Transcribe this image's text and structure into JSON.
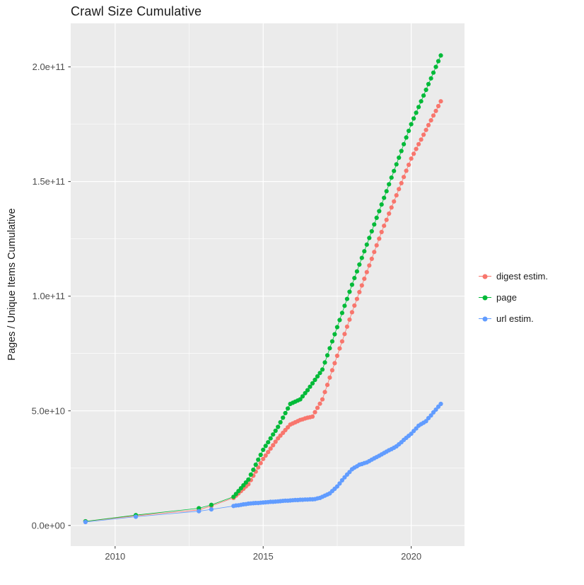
{
  "chart_data": {
    "type": "scatter",
    "has_lines": true,
    "title": "Crawl Size Cumulative",
    "xlabel": "",
    "ylabel": "Pages / Unique Items Cumulative",
    "x_domain": [
      2008.5,
      2021.8
    ],
    "y_domain": [
      -9000000000.0,
      219000000000.0
    ],
    "x_ticks": [
      {
        "value": 2010,
        "label": "2010"
      },
      {
        "value": 2015,
        "label": "2015"
      },
      {
        "value": 2020,
        "label": "2020"
      }
    ],
    "x_minor_ticks": [
      2012.5,
      2017.5
    ],
    "y_ticks": [
      {
        "value": 0,
        "label": "0.0e+00"
      },
      {
        "value": 50000000000.0,
        "label": "5.0e+10"
      },
      {
        "value": 100000000000.0,
        "label": "1.0e+11"
      },
      {
        "value": 150000000000.0,
        "label": "1.5e+11"
      },
      {
        "value": 200000000000.0,
        "label": "2.0e+11"
      }
    ],
    "y_minor_ticks": [
      25000000000.0,
      75000000000.0,
      125000000000.0,
      175000000000.0
    ],
    "panel_bg": "#EBEBEB",
    "grid_color": "#FFFFFF",
    "tick_color": "#333333",
    "tick_label_color": "#4D4D4D",
    "grid": true,
    "legend_position": "right",
    "legend": [
      {
        "label": "digest estim.",
        "color": "#F8766D"
      },
      {
        "label": "page",
        "color": "#00BA38"
      },
      {
        "label": "url estim.",
        "color": "#619CFF"
      }
    ],
    "x": [
      2009.0,
      2010.7,
      2012.83,
      2013.25,
      2014.0,
      2014.083,
      2014.167,
      2014.25,
      2014.333,
      2014.417,
      2014.5,
      2014.583,
      2014.667,
      2014.75,
      2014.833,
      2014.917,
      2015.0,
      2015.083,
      2015.167,
      2015.25,
      2015.333,
      2015.417,
      2015.5,
      2015.583,
      2015.667,
      2015.75,
      2015.833,
      2015.917,
      2016.0,
      2016.083,
      2016.167,
      2016.25,
      2016.333,
      2016.417,
      2016.5,
      2016.583,
      2016.667,
      2016.75,
      2016.833,
      2016.917,
      2017.0,
      2017.083,
      2017.167,
      2017.25,
      2017.333,
      2017.417,
      2017.5,
      2017.583,
      2017.667,
      2017.75,
      2017.833,
      2017.917,
      2018.0,
      2018.083,
      2018.167,
      2018.25,
      2018.333,
      2018.417,
      2018.5,
      2018.583,
      2018.667,
      2018.75,
      2018.833,
      2018.917,
      2019.0,
      2019.083,
      2019.167,
      2019.25,
      2019.333,
      2019.417,
      2019.5,
      2019.583,
      2019.667,
      2019.75,
      2019.833,
      2019.917,
      2020.0,
      2020.083,
      2020.167,
      2020.25,
      2020.333,
      2020.417,
      2020.5,
      2020.583,
      2020.667,
      2020.75,
      2020.833,
      2020.917,
      2021.0
    ],
    "series": [
      {
        "id": "digest",
        "name": "digest estim.",
        "color": "#F8766D",
        "y": [
          1800000000.0,
          4200000000.0,
          6800000000.0,
          8500000000.0,
          12000000000.0,
          13000000000.0,
          14000000000.0,
          15000000000.0,
          16000000000.0,
          17000000000.0,
          18000000000.0,
          19800000000.0,
          21700000000.0,
          23500000000.0,
          25300000000.0,
          27200000000.0,
          29000000000.0,
          30500000000.0,
          32000000000.0,
          33500000000.0,
          35000000000.0,
          36500000000.0,
          38000000000.0,
          39200000000.0,
          40400000000.0,
          41600000000.0,
          42800000000.0,
          44000000000.0,
          44500000000.0,
          45000000000.0,
          45500000000.0,
          46000000000.0,
          46300000000.0,
          46700000000.0,
          47000000000.0,
          47200000000.0,
          47500000000.0,
          49400000000.0,
          51300000000.0,
          53100000000.0,
          55000000000.0,
          58200000000.0,
          61300000000.0,
          64500000000.0,
          67700000000.0,
          70800000000.0,
          74000000000.0,
          77200000000.0,
          80300000000.0,
          83500000000.0,
          86700000000.0,
          89800000000.0,
          93000000000.0,
          95900000000.0,
          98800000000.0,
          101800000000.0,
          104700000000.0,
          107600000000.0,
          110500000000.0,
          113400000000.0,
          116300000000.0,
          119300000000.0,
          122200000000.0,
          125100000000.0,
          128000000000.0,
          130700000000.0,
          133300000000.0,
          136000000000.0,
          138700000000.0,
          141300000000.0,
          144000000000.0,
          146700000000.0,
          149300000000.0,
          152000000000.0,
          154700000000.0,
          157300000000.0,
          160000000000.0,
          162100000000.0,
          164200000000.0,
          166300000000.0,
          168300000000.0,
          170400000000.0,
          172500000000.0,
          174600000000.0,
          176700000000.0,
          178800000000.0,
          180800000000.0,
          182900000000.0,
          185000000000.0
        ]
      },
      {
        "id": "page",
        "name": "page",
        "color": "#00BA38",
        "y": [
          1800000000.0,
          4500000000.0,
          7500000000.0,
          9000000000.0,
          12500000000.0,
          13750000000.0,
          15000000000.0,
          16250000000.0,
          17500000000.0,
          18750000000.0,
          20000000000.0,
          22200000000.0,
          24300000000.0,
          26500000000.0,
          28700000000.0,
          30800000000.0,
          33000000000.0,
          34700000000.0,
          36300000000.0,
          38000000000.0,
          39700000000.0,
          41300000000.0,
          43000000000.0,
          45000000000.0,
          47000000000.0,
          49000000000.0,
          51000000000.0,
          53000000000.0,
          53500000000.0,
          54000000000.0,
          54500000000.0,
          55000000000.0,
          56300000000.0,
          57700000000.0,
          59000000000.0,
          60500000000.0,
          62000000000.0,
          63500000000.0,
          65000000000.0,
          66500000000.0,
          68000000000.0,
          71100000000.0,
          74200000000.0,
          77300000000.0,
          80300000000.0,
          83400000000.0,
          86500000000.0,
          89600000000.0,
          92700000000.0,
          95800000000.0,
          98800000000.0,
          101900000000.0,
          105000000000.0,
          107900000000.0,
          110800000000.0,
          113800000000.0,
          116700000000.0,
          119600000000.0,
          122500000000.0,
          125400000000.0,
          128300000000.0,
          131300000000.0,
          134200000000.0,
          137100000000.0,
          140000000000.0,
          142900000000.0,
          145800000000.0,
          148800000000.0,
          151700000000.0,
          154600000000.0,
          157500000000.0,
          160400000000.0,
          163300000000.0,
          166300000000.0,
          169200000000.0,
          172100000000.0,
          175000000000.0,
          177500000000.0,
          180000000000.0,
          182500000000.0,
          185000000000.0,
          187500000000.0,
          190000000000.0,
          192500000000.0,
          195000000000.0,
          197500000000.0,
          200000000000.0,
          202500000000.0,
          205000000000.0
        ]
      },
      {
        "id": "url",
        "name": "url estim.",
        "color": "#619CFF",
        "y": [
          1500000000.0,
          3800000000.0,
          6200000000.0,
          7000000000.0,
          8500000000.0,
          8700000000.0,
          8800000000.0,
          9000000000.0,
          9200000000.0,
          9300000000.0,
          9500000000.0,
          9600000000.0,
          9700000000.0,
          9800000000.0,
          9800000000.0,
          9900000000.0,
          10000000000.0,
          10100000000.0,
          10200000000.0,
          10300000000.0,
          10300000000.0,
          10400000000.0,
          10500000000.0,
          10600000000.0,
          10700000000.0,
          10800000000.0,
          10800000000.0,
          10900000000.0,
          11000000000.0,
          11100000000.0,
          11100000000.0,
          11200000000.0,
          11200000000.0,
          11300000000.0,
          11300000000.0,
          11400000000.0,
          11400000000.0,
          11500000000.0,
          11800000000.0,
          12000000000.0,
          12500000000.0,
          13000000000.0,
          13500000000.0,
          14000000000.0,
          15000000000.0,
          16000000000.0,
          17000000000.0,
          18300000000.0,
          19700000000.0,
          21000000000.0,
          22200000000.0,
          23300000000.0,
          24500000000.0,
          25200000000.0,
          25800000000.0,
          26500000000.0,
          26800000000.0,
          27200000000.0,
          27500000000.0,
          28100000000.0,
          28700000000.0,
          29300000000.0,
          29800000000.0,
          30400000000.0,
          31000000000.0,
          31600000000.0,
          32200000000.0,
          32800000000.0,
          33300000000.0,
          33900000000.0,
          34500000000.0,
          35400000000.0,
          36300000000.0,
          37300000000.0,
          38200000000.0,
          39100000000.0,
          40000000000.0,
          41200000000.0,
          42300000000.0,
          43500000000.0,
          44200000000.0,
          44800000000.0,
          45500000000.0,
          46800000000.0,
          48000000000.0,
          49300000000.0,
          50500000000.0,
          51800000000.0,
          53000000000.0
        ]
      }
    ]
  }
}
